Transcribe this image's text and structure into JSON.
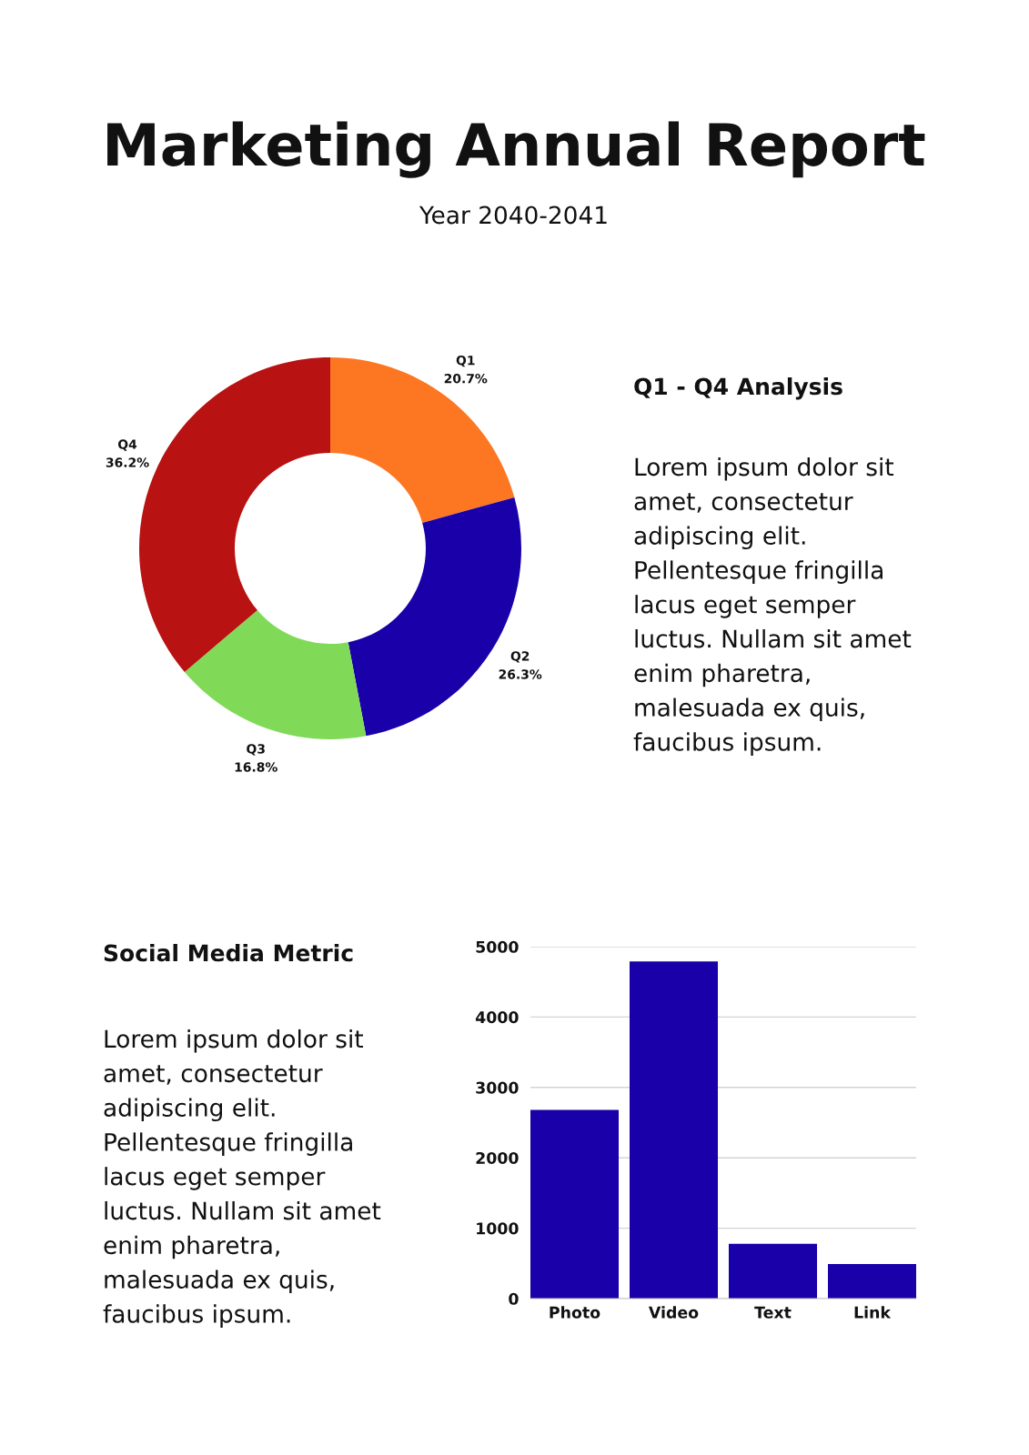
{
  "chart_data": [
    {
      "type": "other",
      "title": "Marketing Annual Report",
      "subtitle": "Year 2040-2041"
    },
    {
      "type": "donut",
      "categories": [
        "Q1",
        "Q2",
        "Q3",
        "Q4"
      ],
      "values": [
        20.7,
        26.3,
        16.8,
        36.2
      ],
      "colors": [
        "#fd7622",
        "#1a00a8",
        "#80da58",
        "#b81212"
      ],
      "value_labels": [
        "20.7%",
        "26.3%",
        "16.8%",
        "36.2%"
      ]
    },
    {
      "type": "other",
      "title": "Q1 - Q4 Analysis",
      "annotations": [
        "Lorem ipsum dolor sit\namet, consectetur\nadipiscing elit.\nPellentesque fringilla\nlacus eget semper\nluctus. Nullam sit amet\nenim pharetra,\nmalesuada ex quis,\nfaucibus ipsum."
      ]
    },
    {
      "type": "other",
      "title": "Social Media Metric",
      "annotations": [
        "Lorem ipsum dolor sit\namet, consectetur\nadipiscing elit.\nPellentesque fringilla\nlacus eget semper\nluctus. Nullam sit amet\nenim pharetra,\nmalesuada ex quis,\nfaucibus ipsum."
      ]
    },
    {
      "type": "bar",
      "categories": [
        "Photo",
        "Video",
        "Text",
        "Link"
      ],
      "values": [
        2680,
        4790,
        780,
        490
      ],
      "color": "#1a00a8",
      "ylim": [
        0,
        5000
      ],
      "yticks": [
        0,
        1000,
        2000,
        3000,
        4000,
        5000
      ],
      "grid": "y"
    }
  ]
}
